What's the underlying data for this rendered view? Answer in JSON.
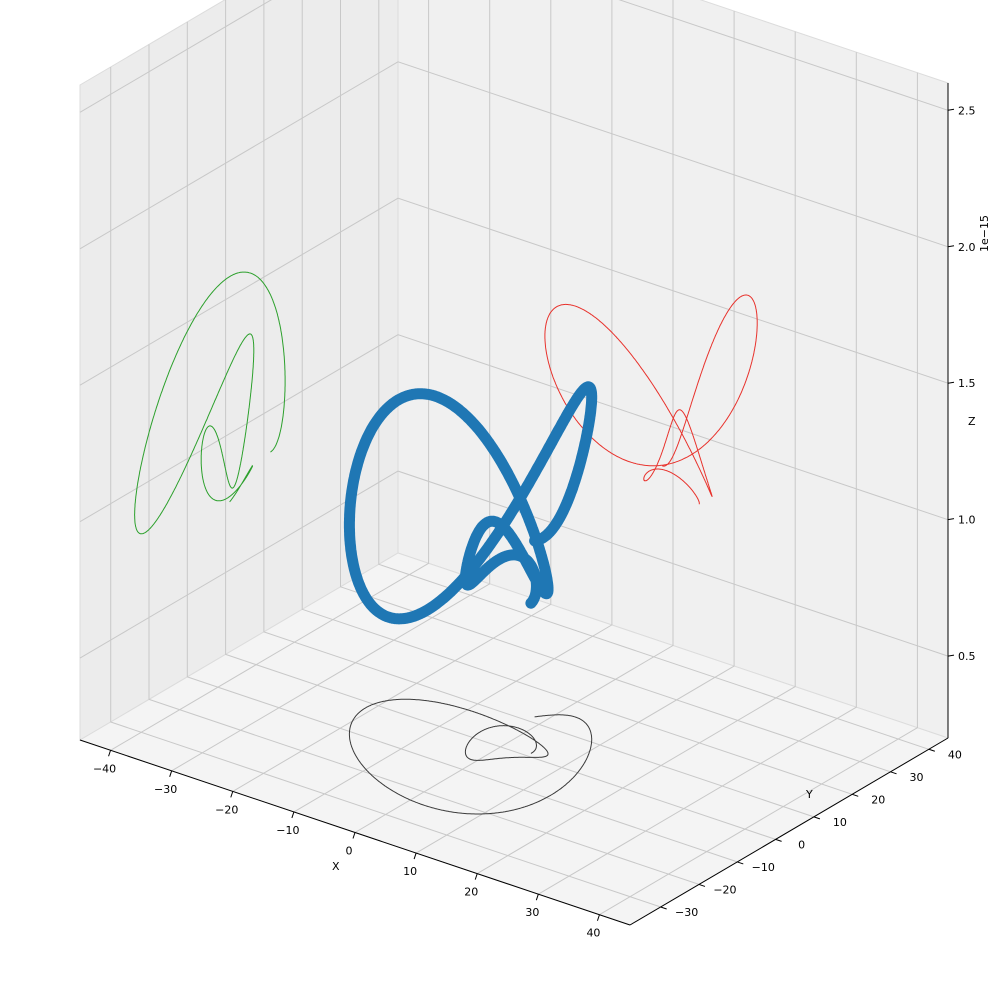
{
  "chart_data": {
    "type": "line3d",
    "title": "",
    "xlabel": "X",
    "ylabel": "Y",
    "zlabel": "Z",
    "z_offset_text": "1e−15",
    "xlim": [
      -45,
      45
    ],
    "ylim": [
      -38,
      45
    ],
    "zlim": [
      0.2,
      2.6
    ],
    "x_ticks": [
      -40,
      -30,
      -20,
      -10,
      0,
      10,
      20,
      30,
      40
    ],
    "y_ticks": [
      -30,
      -20,
      -10,
      0,
      10,
      20,
      30,
      40
    ],
    "z_ticks": [
      0.5,
      1.0,
      1.5,
      2.0,
      2.5
    ],
    "x_tick_labels": [
      "−40",
      "−30",
      "−20",
      "−10",
      "0",
      "10",
      "20",
      "30",
      "40"
    ],
    "y_tick_labels": [
      "−30",
      "−20",
      "−10",
      "0",
      "10",
      "20",
      "30",
      "40"
    ],
    "z_tick_labels": [
      "0.5",
      "1.0",
      "1.5",
      "2.0",
      "2.5"
    ],
    "grid": true,
    "curve": {
      "x_radius": 30,
      "y_radius": 30,
      "z_base": 0.75,
      "z_amp": 0.95,
      "freq_ratio": 2.5,
      "spiral_turns": 1.5
    },
    "series": [
      {
        "color": "#1f77b4",
        "role": "trajectory"
      },
      {
        "color": "#e8322c",
        "role": "projection on x-wall"
      },
      {
        "color": "#2ca02c",
        "role": "projection on y-wall"
      },
      {
        "color": "#3a3a3a",
        "role": "projection on floor"
      }
    ]
  }
}
